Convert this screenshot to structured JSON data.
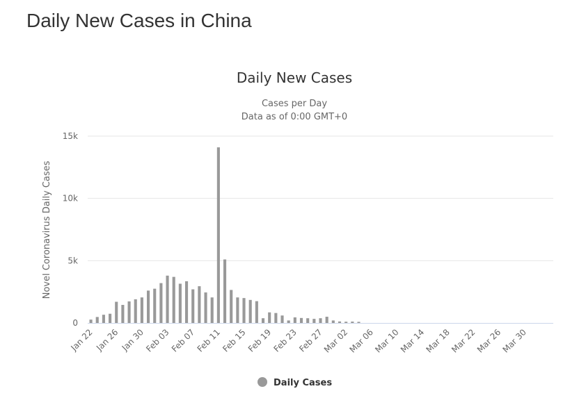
{
  "page": {
    "title": "Daily New Cases in China"
  },
  "chart_data": {
    "type": "bar",
    "title": "Daily New Cases",
    "subtitle_lines": [
      "Cases per Day",
      "Data as of 0:00 GMT+0"
    ],
    "xlabel": "",
    "ylabel": "Novel Coronavirus Daily Cases",
    "ylim": [
      0,
      15000
    ],
    "yticks": [
      0,
      5000,
      10000,
      15000
    ],
    "ytick_labels": [
      "0",
      "5k",
      "10k",
      "15k"
    ],
    "grid": "horizontal",
    "legend_position": "bottom-center",
    "bar_color": "#999999",
    "gridline_color": "#e6e6e6",
    "baseline_color": "#ccd6eb",
    "categories": [
      "Jan 22",
      "Jan 23",
      "Jan 24",
      "Jan 25",
      "Jan 26",
      "Jan 27",
      "Jan 28",
      "Jan 29",
      "Jan 30",
      "Jan 31",
      "Feb 01",
      "Feb 02",
      "Feb 03",
      "Feb 04",
      "Feb 05",
      "Feb 06",
      "Feb 07",
      "Feb 08",
      "Feb 09",
      "Feb 10",
      "Feb 11",
      "Feb 12",
      "Feb 13",
      "Feb 14",
      "Feb 15",
      "Feb 16",
      "Feb 17",
      "Feb 18",
      "Feb 19",
      "Feb 20",
      "Feb 21",
      "Feb 22",
      "Feb 23",
      "Feb 24",
      "Feb 25",
      "Feb 26",
      "Feb 27",
      "Feb 28",
      "Feb 29",
      "Mar 01",
      "Mar 02",
      "Mar 03",
      "Mar 04",
      "Mar 05",
      "Mar 06",
      "Mar 07",
      "Mar 08",
      "Mar 09",
      "Mar 10",
      "Mar 11",
      "Mar 12",
      "Mar 13",
      "Mar 14",
      "Mar 15",
      "Mar 16",
      "Mar 17",
      "Mar 18",
      "Mar 19",
      "Mar 20",
      "Mar 21",
      "Mar 22",
      "Mar 23",
      "Mar 24",
      "Mar 25",
      "Mar 26",
      "Mar 27",
      "Mar 28",
      "Mar 29",
      "Mar 30",
      "Mar 31",
      "Apr 01",
      "Apr 02",
      "Apr 03"
    ],
    "xtick_labels": [
      "Jan 22",
      "Jan 26",
      "Jan 30",
      "Feb 03",
      "Feb 07",
      "Feb 11",
      "Feb 15",
      "Feb 19",
      "Feb 23",
      "Feb 27",
      "Mar 02",
      "Mar 06",
      "Mar 10",
      "Mar 14",
      "Mar 18",
      "Mar 22",
      "Mar 26",
      "Mar 30"
    ],
    "series": [
      {
        "name": "Daily Cases",
        "values": [
          270,
          480,
          660,
          740,
          1700,
          1450,
          1730,
          1900,
          2050,
          2600,
          2750,
          3200,
          3800,
          3700,
          3150,
          3350,
          2700,
          2950,
          2450,
          2050,
          14100,
          5100,
          2650,
          2050,
          2000,
          1850,
          1750,
          380,
          850,
          800,
          600,
          200,
          450,
          400,
          380,
          330,
          380,
          500,
          200,
          120,
          100,
          110,
          90,
          null,
          null,
          null,
          null,
          null,
          null,
          null,
          null,
          null,
          null,
          null,
          null,
          null,
          null,
          null,
          null,
          null,
          null,
          null,
          null,
          null,
          null,
          null,
          null,
          null,
          null,
          null,
          null,
          null,
          null
        ]
      }
    ]
  }
}
